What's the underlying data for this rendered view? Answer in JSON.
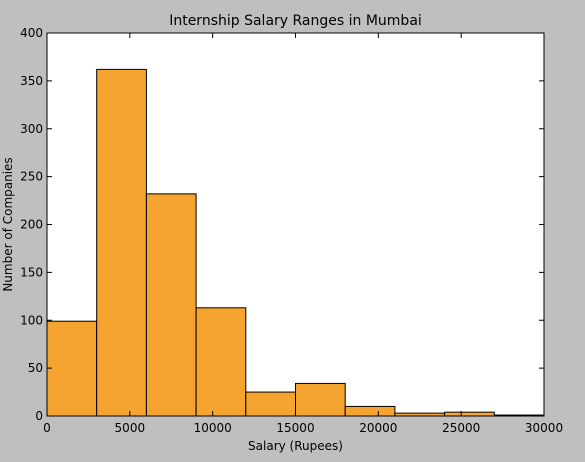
{
  "chart_data": {
    "type": "bar",
    "title": "Internship Salary Ranges in Mumbai",
    "xlabel": "Salary (Rupees)",
    "ylabel": "Number of Companies",
    "xlim": [
      0,
      30000
    ],
    "ylim": [
      0,
      400
    ],
    "x_ticks": [
      0,
      5000,
      10000,
      15000,
      20000,
      25000,
      30000
    ],
    "y_ticks": [
      0,
      50,
      100,
      150,
      200,
      250,
      300,
      350,
      400
    ],
    "bins": [
      {
        "start": 0,
        "end": 3000,
        "count": 99
      },
      {
        "start": 3000,
        "end": 6000,
        "count": 362
      },
      {
        "start": 6000,
        "end": 9000,
        "count": 232
      },
      {
        "start": 9000,
        "end": 12000,
        "count": 113
      },
      {
        "start": 12000,
        "end": 15000,
        "count": 25
      },
      {
        "start": 15000,
        "end": 18000,
        "count": 34
      },
      {
        "start": 18000,
        "end": 21000,
        "count": 10
      },
      {
        "start": 21000,
        "end": 24000,
        "count": 3
      },
      {
        "start": 24000,
        "end": 27000,
        "count": 4
      },
      {
        "start": 27000,
        "end": 30000,
        "count": 1
      }
    ],
    "bar_color": "#f5a430",
    "grid": false
  }
}
